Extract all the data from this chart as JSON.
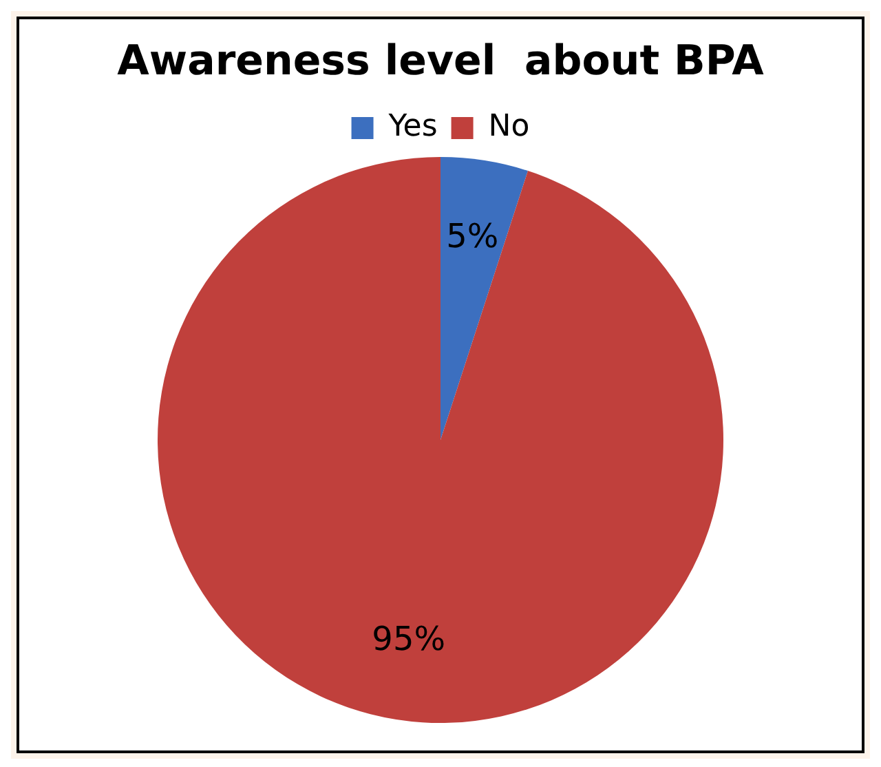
{
  "chart_data": {
    "type": "pie",
    "title": "Awareness level  about BPA",
    "categories": [
      "Yes",
      "No"
    ],
    "values": [
      5,
      95
    ],
    "colors": [
      "#3c6fbf",
      "#c0403c"
    ],
    "value_labels": [
      "5%",
      "95%"
    ],
    "legend": "top"
  }
}
